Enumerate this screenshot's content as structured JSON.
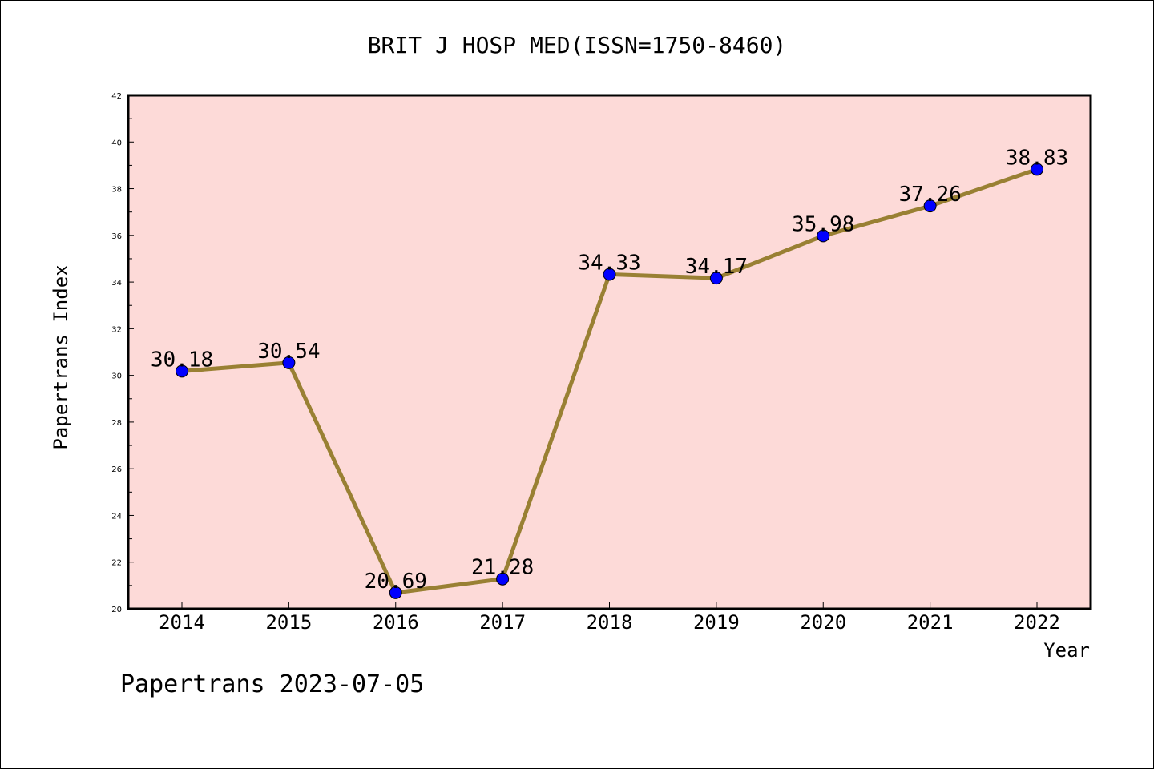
{
  "chart_data": {
    "type": "line",
    "title": "BRIT J HOSP MED(ISSN=1750-8460)",
    "xlabel": "Year",
    "ylabel": "Papertrans Index",
    "categories": [
      "2014",
      "2015",
      "2016",
      "2017",
      "2018",
      "2019",
      "2020",
      "2021",
      "2022"
    ],
    "series": [
      {
        "values": [
          30.18,
          30.54,
          20.69,
          21.28,
          34.33,
          34.17,
          35.98,
          37.26,
          38.83
        ]
      }
    ],
    "data_labels": [
      "30.18",
      "30.54",
      "20.69",
      "21.28",
      "34.33",
      "34.17",
      "35.98",
      "37.26",
      "38.83"
    ],
    "ylim": [
      20,
      42
    ],
    "yticks": [
      "20",
      "22",
      "24",
      "26",
      "28",
      "30",
      "32",
      "34",
      "36",
      "38",
      "40",
      "42"
    ],
    "grid": false,
    "colors": {
      "plot_background": "#fddad8",
      "line": "#998033",
      "marker": "#0000ff"
    },
    "footer": "Papertrans 2023-07-05"
  }
}
